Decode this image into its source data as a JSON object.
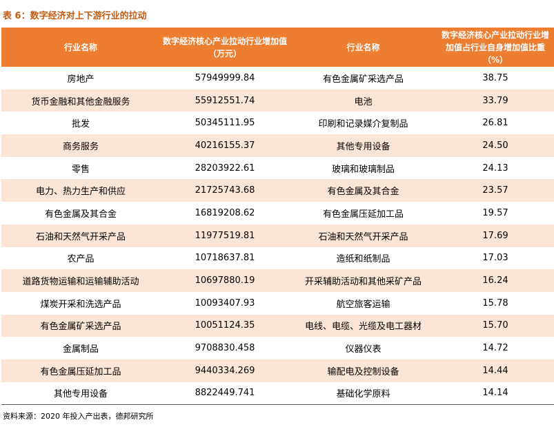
{
  "title": "表 6：数字经济对上下游行业的拉动",
  "table": {
    "header": [
      "行业名称",
      "数字经济核心产业拉动行业增加值（万元）",
      "行业名称",
      "数字经济核心产业拉动行业增加值占行业自身增加值比重（%）"
    ],
    "rows": [
      [
        "房地产",
        "57949999.84",
        "有色金属矿采选产品",
        "38.75"
      ],
      [
        "货币金融和其他金融服务",
        "55912551.74",
        "电池",
        "33.79"
      ],
      [
        "批发",
        "50345111.95",
        "印刷和记录媒介复制品",
        "26.81"
      ],
      [
        "商务服务",
        "40216155.37",
        "其他专用设备",
        "24.50"
      ],
      [
        "零售",
        "28203922.61",
        "玻璃和玻璃制品",
        "24.13"
      ],
      [
        "电力、热力生产和供应",
        "21725743.68",
        "有色金属及其合金",
        "23.57"
      ],
      [
        "有色金属及其合金",
        "16819208.62",
        "有色金属压延加工品",
        "19.57"
      ],
      [
        "石油和天然气开采产品",
        "11977519.81",
        "石油和天然气开采产品",
        "17.69"
      ],
      [
        "农产品",
        "10718637.81",
        "造纸和纸制品",
        "17.03"
      ],
      [
        "道路货物运输和运输辅助活动",
        "10697880.19",
        "开采辅助活动和其他采矿产品",
        "16.24"
      ],
      [
        "煤炭开采和洗选产品",
        "10093407.93",
        "航空旅客运输",
        "15.78"
      ],
      [
        "有色金属矿采选产品",
        "10051124.35",
        "电线、电缆、光缆及电工器材",
        "15.70"
      ],
      [
        "金属制品",
        "9708830.458",
        "仪器仪表",
        "14.72"
      ],
      [
        "有色金属压延加工品",
        "9440334.269",
        "输配电及控制设备",
        "14.44"
      ],
      [
        "其他专用设备",
        "8822449.741",
        "基础化学原料",
        "14.14"
      ]
    ]
  },
  "source": "资料来源：2020 年投入产出表，德邦研究所"
}
